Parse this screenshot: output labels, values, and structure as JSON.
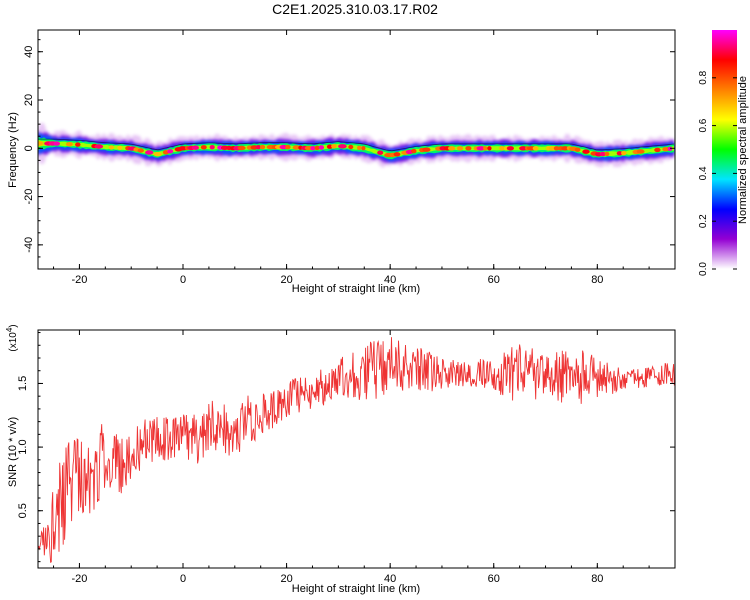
{
  "title": "C2E1.2025.310.03.17.R02",
  "chart_data": [
    {
      "type": "heatmap",
      "xlabel": "Height of straight line (km)",
      "ylabel": "Frequency (Hz)",
      "xlim": [
        -28,
        95
      ],
      "ylim": [
        -50,
        49
      ],
      "xticks": [
        -20,
        0,
        20,
        40,
        60,
        80
      ],
      "yticks": [
        -40,
        -20,
        0,
        20,
        40
      ],
      "colorbar": {
        "label": "Normalized spectral amplitude",
        "range": [
          0.0,
          1.0
        ],
        "ticks": [
          {
            "value": 0.0,
            "label": "0.0"
          },
          {
            "value": 0.2,
            "label": "0.2"
          },
          {
            "value": 0.4,
            "label": "0.4"
          },
          {
            "value": 0.6,
            "label": "0.6"
          },
          {
            "value": 0.8,
            "label": "0.8"
          }
        ],
        "colors": [
          "#ffffff",
          "#9400d3",
          "#0000ff",
          "#00e5ff",
          "#00ff00",
          "#ffff00",
          "#ff8000",
          "#ff0000",
          "#ff00ff"
        ]
      },
      "ridge": {
        "x": [
          -28,
          -25,
          -20,
          -15,
          -10,
          -5,
          0,
          5,
          10,
          15,
          20,
          25,
          30,
          35,
          40,
          45,
          50,
          55,
          60,
          65,
          70,
          75,
          80,
          85,
          90,
          95
        ],
        "frequency": [
          2,
          2,
          1.5,
          0.5,
          0,
          -2.5,
          0,
          0.5,
          0,
          0.5,
          0.5,
          0,
          1,
          0,
          -3,
          -1,
          0,
          0,
          0,
          0,
          0,
          0,
          -2.5,
          -2,
          -1,
          0
        ],
        "half_width": [
          5,
          3,
          3,
          3,
          3,
          3,
          3,
          3,
          3,
          3,
          3,
          3,
          3,
          3,
          3,
          3,
          3,
          3,
          3,
          3,
          3,
          3,
          3,
          3,
          3,
          3
        ]
      }
    },
    {
      "type": "line",
      "xlabel": "Height of straight line (km)",
      "ylabel": "SNR (10 * v/v)",
      "y_multiplier": "(x10",
      "y_multiplier_exp": "4",
      "y_multiplier_close": ")",
      "xlim": [
        -28,
        95
      ],
      "ylim": [
        0.05,
        1.92
      ],
      "xticks": [
        -20,
        0,
        20,
        40,
        60,
        80
      ],
      "yticks": [
        {
          "value": 0.5,
          "label": "0.5"
        },
        {
          "value": 1.0,
          "label": "1.0"
        },
        {
          "value": 1.5,
          "label": "1.5"
        }
      ],
      "color": "#ee3333",
      "x": [
        -28,
        -25,
        -22,
        -20,
        -18,
        -15,
        -12,
        -10,
        -8,
        -5,
        -3,
        0,
        3,
        5,
        8,
        10,
        12,
        15,
        18,
        20,
        22,
        25,
        28,
        30,
        35,
        40,
        45,
        50,
        55,
        60,
        65,
        70,
        75,
        80,
        85,
        90,
        95
      ],
      "y": [
        0.15,
        0.45,
        0.7,
        0.85,
        0.7,
        0.95,
        0.85,
        0.95,
        1.0,
        1.1,
        1.05,
        1.1,
        1.05,
        1.2,
        1.15,
        1.1,
        1.2,
        1.25,
        1.3,
        1.35,
        1.4,
        1.45,
        1.48,
        1.55,
        1.6,
        1.62,
        1.6,
        1.58,
        1.57,
        1.57,
        1.57,
        1.56,
        1.55,
        1.55,
        1.53,
        1.55,
        1.58
      ],
      "noise": [
        0.08,
        0.35,
        0.4,
        0.35,
        0.3,
        0.3,
        0.22,
        0.2,
        0.2,
        0.18,
        0.2,
        0.18,
        0.2,
        0.22,
        0.2,
        0.2,
        0.2,
        0.18,
        0.15,
        0.15,
        0.15,
        0.15,
        0.15,
        0.15,
        0.25,
        0.25,
        0.2,
        0.12,
        0.1,
        0.15,
        0.25,
        0.2,
        0.25,
        0.18,
        0.08,
        0.08,
        0.1
      ]
    }
  ]
}
